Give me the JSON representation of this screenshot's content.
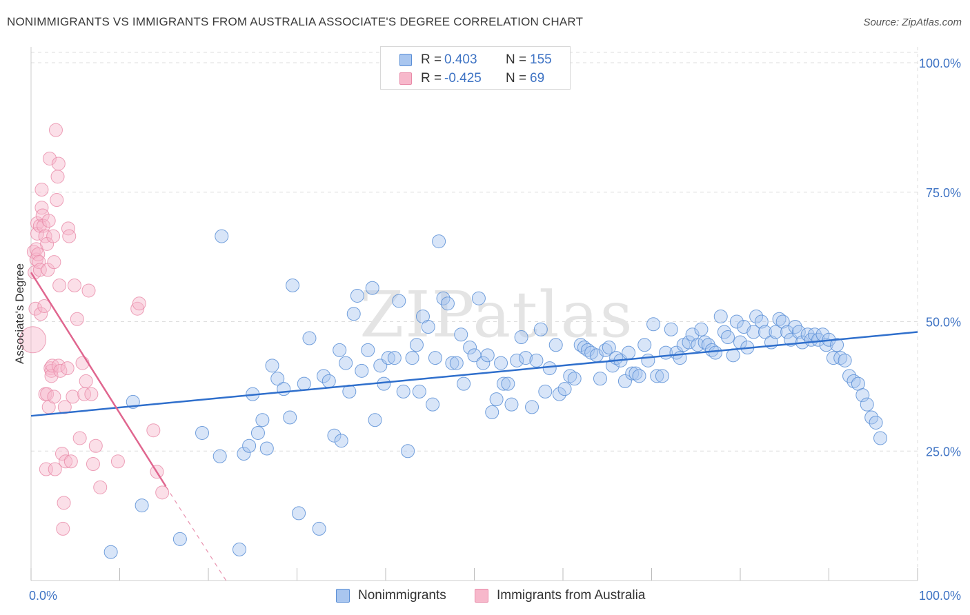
{
  "title": "NONIMMIGRANTS VS IMMIGRANTS FROM AUSTRALIA ASSOCIATE'S DEGREE CORRELATION CHART",
  "source": "Source: ZipAtlas.com",
  "watermark": "ZIPatlas",
  "colors": {
    "blue_fill": "#a9c6ef",
    "blue_stroke": "#5b8fd6",
    "blue_line": "#2f6fcc",
    "pink_fill": "#f7b8cb",
    "pink_stroke": "#e98aa8",
    "pink_line": "#e0668f",
    "tick_text": "#3e73c4",
    "grid": "#dddddd"
  },
  "legend_top": {
    "rows": [
      {
        "swatch": "blue",
        "r_label": "R =",
        "r_value": " 0.403",
        "n_label": "N =",
        "n_value": "155"
      },
      {
        "swatch": "pink",
        "r_label": "R =",
        "r_value": "-0.425",
        "n_label": "N =",
        "n_value": " 69"
      }
    ]
  },
  "legend_bottom": {
    "items": [
      {
        "swatch": "blue",
        "label": "Nonimmigrants"
      },
      {
        "swatch": "pink",
        "label": "Immigrants from Australia"
      }
    ]
  },
  "chart_data": {
    "type": "scatter",
    "title": "NONIMMIGRANTS VS IMMIGRANTS FROM AUSTRALIA ASSOCIATE'S DEGREE CORRELATION CHART",
    "xlabel": "",
    "ylabel": "Associate's Degree",
    "xlim": [
      0,
      100
    ],
    "ylim": [
      0,
      102
    ],
    "x_tick_labels": [
      {
        "value": 0,
        "label": "0.0%"
      },
      {
        "value": 100,
        "label": "100.0%"
      }
    ],
    "y_tick_labels": [
      {
        "value": 25,
        "label": "25.0%"
      },
      {
        "value": 50,
        "label": "50.0%"
      },
      {
        "value": 75,
        "label": "75.0%"
      },
      {
        "value": 100,
        "label": "100.0%"
      }
    ],
    "grid": "horizontal dashed",
    "legend": "top-center",
    "series": [
      {
        "name": "Nonimmigrants",
        "color": "#a9c6ef",
        "trend": {
          "x": [
            0,
            100
          ],
          "y": [
            31.8,
            48.0
          ]
        },
        "points": [
          [
            9.0,
            5.5
          ],
          [
            11.5,
            34.5
          ],
          [
            12.5,
            14.5
          ],
          [
            16.8,
            8.0
          ],
          [
            19.3,
            28.5
          ],
          [
            21.3,
            24.0
          ],
          [
            21.5,
            66.5
          ],
          [
            23.5,
            6.0
          ],
          [
            24.0,
            24.5
          ],
          [
            24.6,
            26.0
          ],
          [
            25.0,
            36.0
          ],
          [
            25.6,
            28.5
          ],
          [
            26.1,
            31.0
          ],
          [
            26.6,
            25.5
          ],
          [
            27.2,
            41.5
          ],
          [
            27.8,
            39.0
          ],
          [
            28.5,
            37.0
          ],
          [
            29.2,
            31.5
          ],
          [
            29.5,
            57.0
          ],
          [
            30.2,
            13.0
          ],
          [
            30.8,
            38.0
          ],
          [
            31.4,
            46.8
          ],
          [
            32.5,
            10.0
          ],
          [
            33.0,
            39.5
          ],
          [
            33.6,
            38.5
          ],
          [
            34.2,
            28.0
          ],
          [
            34.8,
            44.5
          ],
          [
            35.0,
            27.0
          ],
          [
            35.5,
            42.0
          ],
          [
            35.9,
            36.5
          ],
          [
            36.4,
            51.5
          ],
          [
            36.8,
            55.0
          ],
          [
            37.3,
            40.5
          ],
          [
            38.0,
            44.5
          ],
          [
            38.5,
            56.5
          ],
          [
            38.8,
            31.0
          ],
          [
            39.4,
            41.5
          ],
          [
            39.8,
            38.0
          ],
          [
            40.3,
            43.0
          ],
          [
            41.0,
            43.0
          ],
          [
            41.5,
            54.0
          ],
          [
            42.0,
            36.5
          ],
          [
            42.5,
            25.0
          ],
          [
            43.0,
            43.0
          ],
          [
            43.5,
            45.5
          ],
          [
            43.8,
            36.5
          ],
          [
            44.2,
            51.0
          ],
          [
            44.8,
            49.0
          ],
          [
            45.3,
            34.0
          ],
          [
            45.6,
            43.0
          ],
          [
            46.0,
            65.5
          ],
          [
            46.5,
            54.5
          ],
          [
            47.0,
            53.5
          ],
          [
            47.5,
            42.0
          ],
          [
            48.0,
            42.0
          ],
          [
            48.5,
            47.5
          ],
          [
            48.8,
            38.0
          ],
          [
            49.5,
            45.0
          ],
          [
            50.0,
            43.5
          ],
          [
            50.5,
            54.5
          ],
          [
            51.0,
            42.0
          ],
          [
            51.5,
            43.5
          ],
          [
            52.0,
            32.5
          ],
          [
            52.5,
            35.0
          ],
          [
            53.0,
            42.0
          ],
          [
            53.3,
            38.0
          ],
          [
            53.8,
            38.0
          ],
          [
            54.2,
            34.0
          ],
          [
            54.8,
            42.5
          ],
          [
            55.3,
            47.0
          ],
          [
            55.8,
            43.0
          ],
          [
            56.5,
            33.5
          ],
          [
            57.0,
            42.5
          ],
          [
            57.5,
            48.5
          ],
          [
            58.0,
            36.5
          ],
          [
            58.5,
            41.0
          ],
          [
            59.2,
            45.5
          ],
          [
            59.6,
            36.0
          ],
          [
            60.2,
            37.0
          ],
          [
            60.8,
            39.5
          ],
          [
            61.3,
            39.0
          ],
          [
            62.0,
            45.5
          ],
          [
            62.4,
            45.0
          ],
          [
            62.8,
            44.5
          ],
          [
            63.2,
            44.0
          ],
          [
            63.8,
            43.5
          ],
          [
            64.2,
            39.0
          ],
          [
            64.8,
            44.5
          ],
          [
            65.2,
            45.0
          ],
          [
            65.6,
            41.5
          ],
          [
            66.0,
            43.0
          ],
          [
            66.5,
            42.5
          ],
          [
            67.0,
            38.5
          ],
          [
            67.4,
            44.0
          ],
          [
            67.8,
            40.0
          ],
          [
            68.2,
            40.0
          ],
          [
            68.6,
            39.5
          ],
          [
            69.2,
            45.5
          ],
          [
            69.6,
            42.5
          ],
          [
            70.2,
            49.5
          ],
          [
            70.6,
            39.5
          ],
          [
            71.2,
            39.5
          ],
          [
            71.6,
            44.0
          ],
          [
            72.2,
            48.5
          ],
          [
            72.8,
            44.0
          ],
          [
            73.2,
            43.0
          ],
          [
            73.6,
            45.5
          ],
          [
            74.2,
            46.0
          ],
          [
            74.6,
            47.5
          ],
          [
            75.2,
            45.5
          ],
          [
            75.6,
            48.5
          ],
          [
            76.0,
            46.0
          ],
          [
            76.4,
            45.5
          ],
          [
            76.8,
            44.5
          ],
          [
            77.2,
            44.0
          ],
          [
            77.8,
            51.0
          ],
          [
            78.2,
            48.0
          ],
          [
            78.6,
            47.0
          ],
          [
            79.2,
            43.5
          ],
          [
            79.6,
            50.0
          ],
          [
            80.0,
            46.0
          ],
          [
            80.4,
            49.0
          ],
          [
            80.8,
            45.0
          ],
          [
            81.5,
            48.0
          ],
          [
            81.8,
            51.0
          ],
          [
            82.4,
            50.0
          ],
          [
            82.8,
            48.0
          ],
          [
            83.5,
            46.0
          ],
          [
            84.0,
            48.0
          ],
          [
            84.4,
            50.5
          ],
          [
            84.8,
            50.0
          ],
          [
            85.3,
            48.0
          ],
          [
            85.7,
            46.5
          ],
          [
            86.2,
            49.0
          ],
          [
            86.6,
            48.0
          ],
          [
            87.0,
            46.0
          ],
          [
            87.6,
            47.5
          ],
          [
            88.0,
            46.5
          ],
          [
            88.4,
            47.5
          ],
          [
            88.8,
            46.5
          ],
          [
            89.3,
            47.5
          ],
          [
            89.7,
            45.5
          ],
          [
            90.0,
            46.5
          ],
          [
            90.5,
            43.0
          ],
          [
            90.9,
            45.5
          ],
          [
            91.3,
            43.0
          ],
          [
            91.8,
            42.5
          ],
          [
            92.3,
            39.5
          ],
          [
            92.8,
            38.5
          ],
          [
            93.3,
            38.0
          ],
          [
            93.8,
            35.8
          ],
          [
            94.3,
            34.0
          ],
          [
            94.8,
            31.5
          ],
          [
            95.3,
            30.5
          ],
          [
            95.8,
            27.5
          ]
        ]
      },
      {
        "name": "Immigrants from Australia",
        "color": "#f7b8cb",
        "trend": {
          "x": [
            0,
            15.2
          ],
          "y": [
            59.5,
            18.2
          ],
          "dashed_to": [
            22.0,
            0
          ]
        },
        "points": [
          [
            0.2,
            46.5
          ],
          [
            0.3,
            63.5
          ],
          [
            0.4,
            59.5
          ],
          [
            0.5,
            52.5
          ],
          [
            0.6,
            62.0
          ],
          [
            0.6,
            64.0
          ],
          [
            0.7,
            69.0
          ],
          [
            0.7,
            67.0
          ],
          [
            0.8,
            63.0
          ],
          [
            0.9,
            61.5
          ],
          [
            1.0,
            68.5
          ],
          [
            1.0,
            60.0
          ],
          [
            1.1,
            51.5
          ],
          [
            1.2,
            72.0
          ],
          [
            1.2,
            75.5
          ],
          [
            1.3,
            70.5
          ],
          [
            1.4,
            68.5
          ],
          [
            1.5,
            53.0
          ],
          [
            1.6,
            66.5
          ],
          [
            1.6,
            36.0
          ],
          [
            1.7,
            21.5
          ],
          [
            1.8,
            65.0
          ],
          [
            1.8,
            36.0
          ],
          [
            1.9,
            60.0
          ],
          [
            2.0,
            69.5
          ],
          [
            2.0,
            33.5
          ],
          [
            2.1,
            81.5
          ],
          [
            2.2,
            41.0
          ],
          [
            2.3,
            40.5
          ],
          [
            2.3,
            39.5
          ],
          [
            2.4,
            41.5
          ],
          [
            2.5,
            66.5
          ],
          [
            2.6,
            61.5
          ],
          [
            2.6,
            35.5
          ],
          [
            2.7,
            21.5
          ],
          [
            2.8,
            87.0
          ],
          [
            2.9,
            73.5
          ],
          [
            3.0,
            78.0
          ],
          [
            3.1,
            80.5
          ],
          [
            3.1,
            41.5
          ],
          [
            3.2,
            57.0
          ],
          [
            3.3,
            40.5
          ],
          [
            3.5,
            24.5
          ],
          [
            3.6,
            10.0
          ],
          [
            3.7,
            15.0
          ],
          [
            3.8,
            33.5
          ],
          [
            3.9,
            23.0
          ],
          [
            4.1,
            41.0
          ],
          [
            4.2,
            68.0
          ],
          [
            4.3,
            66.5
          ],
          [
            4.5,
            23.0
          ],
          [
            4.7,
            35.5
          ],
          [
            4.9,
            57.0
          ],
          [
            5.2,
            50.5
          ],
          [
            5.5,
            27.5
          ],
          [
            5.8,
            42.0
          ],
          [
            6.0,
            36.0
          ],
          [
            6.2,
            38.5
          ],
          [
            6.5,
            56.0
          ],
          [
            6.8,
            36.0
          ],
          [
            7.0,
            22.5
          ],
          [
            7.3,
            26.0
          ],
          [
            7.8,
            18.0
          ],
          [
            9.8,
            23.0
          ],
          [
            12.0,
            52.5
          ],
          [
            12.2,
            53.5
          ],
          [
            13.8,
            29.0
          ],
          [
            14.2,
            21.0
          ],
          [
            14.8,
            17.0
          ]
        ]
      }
    ]
  }
}
